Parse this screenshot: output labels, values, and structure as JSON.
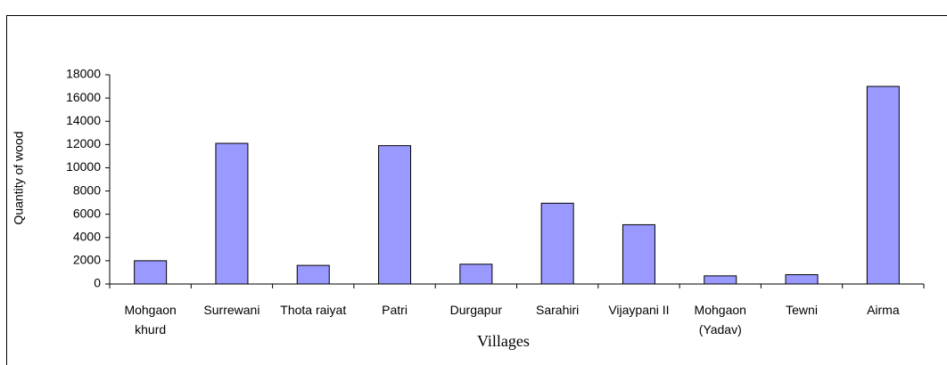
{
  "chart_data": {
    "type": "bar",
    "x_label": "Villages",
    "y_label": "Quantity of wood",
    "categories": [
      "Mohgaon khurd",
      "Surrewani",
      "Thota raiyat",
      "Patri",
      "Durgapur",
      "Sarahiri",
      "Vijaypani II",
      "Mohgaon (Yadav)",
      "Tewni",
      "Airma"
    ],
    "values": [
      2000,
      12100,
      1600,
      11900,
      1700,
      6950,
      5100,
      700,
      800,
      17000
    ],
    "color": "#9999ff",
    "ylim": [
      0,
      18000
    ],
    "yticks": [
      0,
      2000,
      4000,
      6000,
      8000,
      10000,
      12000,
      14000,
      16000,
      18000
    ],
    "grid": false
  }
}
